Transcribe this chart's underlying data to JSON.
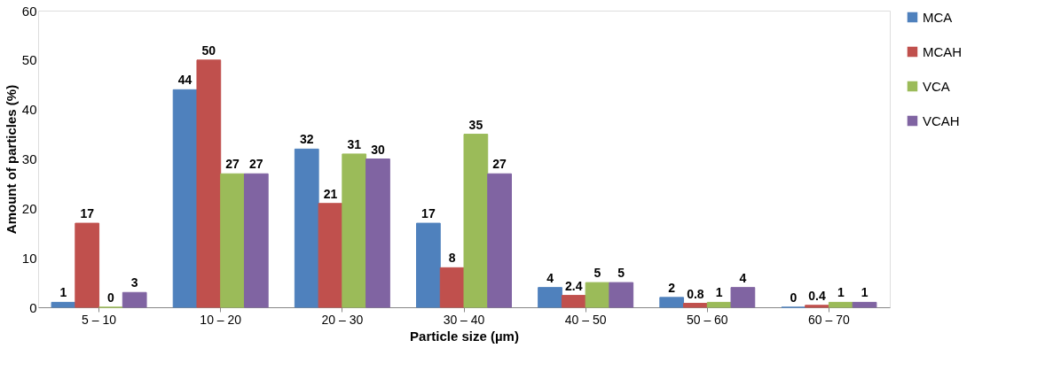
{
  "chart_data": {
    "type": "bar",
    "xlabel": "Particle size (µm)",
    "ylabel": "Amount of particles (%)",
    "categories": [
      "5 – 10",
      "10 – 20",
      "20 – 30",
      "30 – 40",
      "40 – 50",
      "50 – 60",
      "60 – 70"
    ],
    "series": [
      {
        "name": "MCA",
        "color": "#4f81bd",
        "values": [
          1,
          44,
          32,
          17,
          4,
          2,
          0
        ]
      },
      {
        "name": "MCAH",
        "color": "#c0504d",
        "values": [
          17,
          50,
          21,
          8,
          2.4,
          0.8,
          0.4
        ]
      },
      {
        "name": "VCA",
        "color": "#9bbb59",
        "values": [
          0,
          27,
          31,
          35,
          5,
          1,
          1
        ]
      },
      {
        "name": "VCAH",
        "color": "#8064a2",
        "values": [
          3,
          27,
          30,
          27,
          5,
          4,
          1
        ]
      }
    ],
    "ylim": [
      0,
      60
    ],
    "yticks": [
      0,
      10,
      20,
      30,
      40,
      50,
      60
    ],
    "grid": false,
    "legend": "right",
    "data_labels": true
  }
}
